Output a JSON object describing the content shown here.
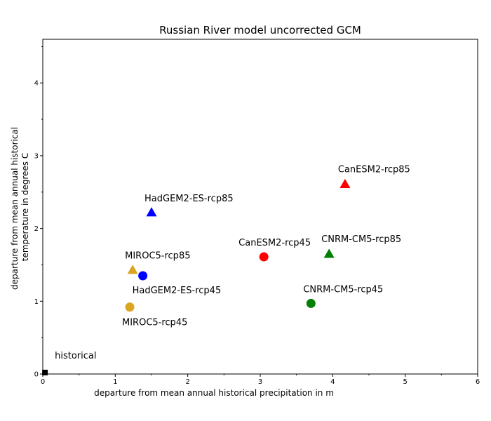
{
  "chart_data": {
    "type": "scatter",
    "title": "Russian River model uncorrected GCM",
    "xlabel": "departure from mean annual historical precipitation in m",
    "ylabel": [
      "departure from mean annual historical",
      "temperature in degrees C"
    ],
    "xlim": [
      0,
      6
    ],
    "ylim": [
      0,
      4.6
    ],
    "x_ticks": [
      0,
      1,
      2,
      3,
      4,
      5,
      6
    ],
    "y_ticks": [
      0,
      1,
      2,
      3,
      4
    ],
    "grid": false,
    "points": [
      {
        "label": "historical",
        "x": 0.03,
        "y": 0.02,
        "marker": "square",
        "color": "#000000"
      },
      {
        "label": "MIROC5-rcp45",
        "x": 1.2,
        "y": 0.92,
        "marker": "circle",
        "color": "#DAA520"
      },
      {
        "label": "MIROC5-rcp85",
        "x": 1.24,
        "y": 1.43,
        "marker": "triangle",
        "color": "#DAA520"
      },
      {
        "label": "HadGEM2-ES-rcp45",
        "x": 1.38,
        "y": 1.35,
        "marker": "circle",
        "color": "#0000FF"
      },
      {
        "label": "HadGEM2-ES-rcp85",
        "x": 1.5,
        "y": 2.22,
        "marker": "triangle",
        "color": "#0000FF"
      },
      {
        "label": "CanESM2-rcp45",
        "x": 3.05,
        "y": 1.61,
        "marker": "circle",
        "color": "#FF0000"
      },
      {
        "label": "CanESM2-rcp85",
        "x": 4.17,
        "y": 2.61,
        "marker": "triangle",
        "color": "#FF0000"
      },
      {
        "label": "CNRM-CM5-rcp45",
        "x": 3.7,
        "y": 0.97,
        "marker": "circle",
        "color": "#008000"
      },
      {
        "label": "CNRM-CM5-rcp85",
        "x": 3.95,
        "y": 1.65,
        "marker": "triangle",
        "color": "#008000"
      }
    ]
  }
}
